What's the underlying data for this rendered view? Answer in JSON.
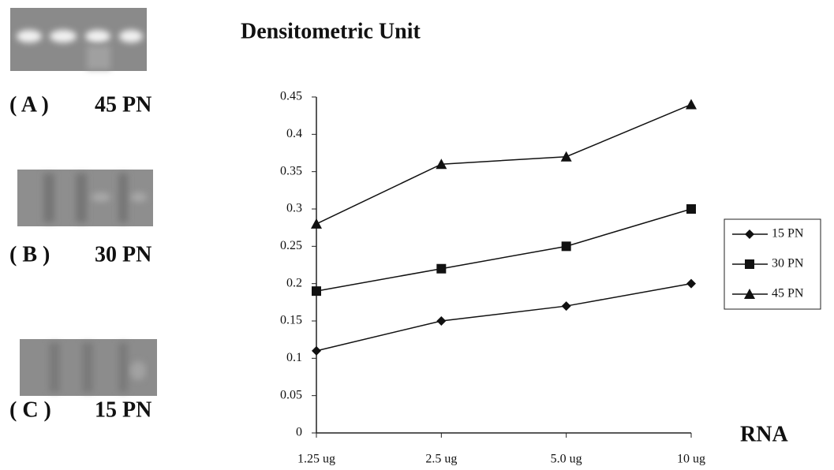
{
  "figure": {
    "panels": [
      {
        "label": "( A )",
        "name": "45 PN"
      },
      {
        "label": "( B )",
        "name": "30 PN"
      },
      {
        "label": "( C )",
        "name": "15 PN"
      }
    ]
  },
  "chart_data": {
    "type": "line",
    "title": "Densitometric Unit",
    "x_label": "RNA",
    "categories": [
      "1.25 ug",
      "2.5 ug",
      "5.0 ug",
      "10 ug"
    ],
    "series": [
      {
        "name": "15 PN",
        "color": "#111111",
        "marker": "diamond",
        "values": [
          0.11,
          0.15,
          0.17,
          0.2
        ]
      },
      {
        "name": "30 PN",
        "color": "#111111",
        "marker": "square",
        "values": [
          0.19,
          0.22,
          0.25,
          0.3
        ]
      },
      {
        "name": "45 PN",
        "color": "#111111",
        "marker": "triangle",
        "values": [
          0.28,
          0.36,
          0.37,
          0.44
        ]
      }
    ],
    "ylim": [
      0,
      0.45
    ],
    "yticks": [
      0,
      0.05,
      0.1,
      0.15,
      0.2,
      0.25,
      0.3,
      0.35,
      0.4,
      0.45
    ],
    "grid": false,
    "legend": "right"
  }
}
